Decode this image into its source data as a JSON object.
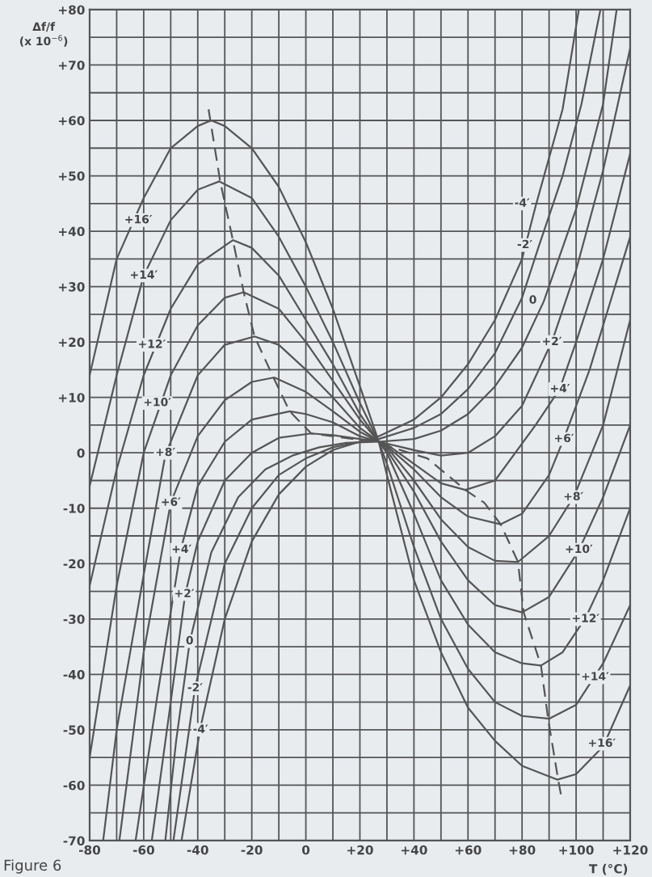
{
  "chart_data": {
    "type": "line",
    "xlabel": "T (°C)",
    "ylabel": "Δf/f\n(x 10$^{−6}$)",
    "xlim": [
      -80,
      120
    ],
    "xticks": [
      -80,
      {
        "value": -70,
        "label": null
      },
      -60,
      {
        "value": -50,
        "label": null
      },
      -40,
      {
        "value": -30,
        "label": null
      },
      -20,
      {
        "value": -10,
        "label": null
      },
      0,
      {
        "value": 10,
        "label": null
      },
      {
        "value": 20,
        "label": "+20"
      },
      {
        "value": 30,
        "label": null
      },
      {
        "value": 40,
        "label": "+40"
      },
      {
        "value": 50,
        "label": null
      },
      {
        "value": 60,
        "label": "+60"
      },
      {
        "value": 70,
        "label": null
      },
      {
        "value": 80,
        "label": "+80"
      },
      {
        "value": 90,
        "label": null
      },
      {
        "value": 100,
        "label": "+100"
      },
      {
        "value": 110,
        "label": null
      },
      {
        "value": 120,
        "label": "+120"
      }
    ],
    "ylim": [
      -70,
      80
    ],
    "yticks": [
      -70,
      {
        "value": -65,
        "label": null
      },
      -60,
      {
        "value": -55,
        "label": null
      },
      -50,
      {
        "value": -45,
        "label": null
      },
      -40,
      {
        "value": -35,
        "label": null
      },
      -30,
      {
        "value": -25,
        "label": null
      },
      -20,
      {
        "value": -15,
        "label": null
      },
      -10,
      {
        "value": -5,
        "label": null
      },
      0,
      {
        "value": 5,
        "label": null
      },
      {
        "value": 10,
        "label": "+10"
      },
      {
        "value": 15,
        "label": null
      },
      {
        "value": 20,
        "label": "+20"
      },
      {
        "value": 25,
        "label": null
      },
      {
        "value": 30,
        "label": "+30"
      },
      {
        "value": 35,
        "label": null
      },
      {
        "value": 40,
        "label": "+40"
      },
      {
        "value": 45,
        "label": null
      },
      {
        "value": 50,
        "label": "+50"
      },
      {
        "value": 55,
        "label": null
      },
      {
        "value": 60,
        "label": "+60"
      },
      {
        "value": 65,
        "label": null
      },
      {
        "value": 70,
        "label": "+70"
      },
      {
        "value": 75,
        "label": null
      },
      {
        "value": 80,
        "label": "+80"
      }
    ],
    "grid": true,
    "line_style": "solid",
    "marker": "none",
    "series": [
      {
        "color": "#555555",
        "x": [
          -80,
          -70,
          -60,
          -50,
          -40,
          -35,
          -30,
          -20,
          -10,
          0,
          10,
          20,
          27,
          30,
          40,
          50,
          60,
          70,
          80,
          93,
          100,
          110,
          120
        ],
        "values": [
          14,
          35,
          46,
          55,
          59,
          60,
          59,
          55,
          48,
          38,
          26,
          12,
          2,
          -4,
          -23,
          -36,
          -46,
          -52,
          -56.5,
          -59,
          -58,
          -53,
          -42
        ]
      },
      {
        "color": "#555555",
        "x": [
          -80,
          -70,
          -60,
          -50,
          -40,
          -32,
          -20,
          -10,
          0,
          10,
          20,
          27,
          30,
          40,
          50,
          60,
          70,
          80,
          90,
          100,
          110,
          120
        ],
        "values": [
          -6,
          14,
          32,
          42,
          47.5,
          49,
          46,
          39,
          30,
          20,
          9,
          2,
          -2,
          -17,
          -30,
          -39,
          -45,
          -47.5,
          -48,
          -45.5,
          -38,
          -27.5
        ]
      },
      {
        "color": "#555555",
        "x": [
          -80,
          -70,
          -60,
          -50,
          -40,
          -27,
          -20,
          -10,
          0,
          10,
          20,
          27,
          30,
          40,
          50,
          60,
          70,
          80,
          87,
          95,
          103.5,
          110,
          120
        ],
        "values": [
          -24,
          -3,
          14,
          26,
          34,
          38.4,
          37,
          32,
          24,
          16,
          7,
          2,
          0,
          -11,
          -23,
          -31,
          -36,
          -38,
          -38.4,
          -36,
          -29.8,
          -23,
          -10
        ]
      },
      {
        "color": "#555555",
        "x": [
          -80,
          -70,
          -60,
          -50,
          -40,
          -30,
          -23,
          -10,
          0,
          10,
          20,
          27,
          30,
          40,
          50,
          60,
          70,
          80,
          90,
          101,
          110,
          120
        ],
        "values": [
          -55,
          -24,
          0,
          14,
          23,
          28,
          29,
          26,
          20,
          13,
          6,
          2,
          0.5,
          -7,
          -16,
          -23,
          -27.5,
          -28.8,
          -26,
          -17.6,
          -8,
          5
        ]
      },
      {
        "color": "#555555",
        "x": [
          -75,
          -70,
          -60,
          -52,
          -40,
          -30,
          -19,
          -10,
          0,
          10,
          20,
          27,
          30,
          40,
          50,
          60,
          70,
          78.5,
          90,
          99.3,
          110,
          120
        ],
        "values": [
          -70,
          -50,
          -22,
          -0.4,
          14,
          19.5,
          21,
          19.5,
          15,
          10,
          4.5,
          2,
          1,
          -5,
          -12,
          -17,
          -19.5,
          -19.7,
          -15,
          -7.8,
          5,
          24
        ]
      },
      {
        "color": "#555555",
        "x": [
          -69,
          -60,
          -50,
          -40,
          -30,
          -20,
          -11.7,
          0,
          10,
          20,
          27,
          30,
          40,
          50,
          60,
          72,
          80,
          90,
          95.5,
          105,
          120
        ],
        "values": [
          -70,
          -36,
          -9,
          3,
          9.5,
          12.8,
          13.6,
          11,
          7.5,
          3.8,
          2,
          1.2,
          -3,
          -8,
          -11.5,
          -12.9,
          -11,
          -4,
          2.6,
          15,
          39
        ]
      },
      {
        "color": "#555555",
        "x": [
          -63,
          -55,
          -46.3,
          -40,
          -30,
          -20,
          -6,
          0,
          10,
          20,
          27,
          30,
          40,
          50,
          59,
          70,
          85,
          93.9,
          100,
          110,
          120
        ],
        "values": [
          -70,
          -44,
          -17.5,
          -6,
          2,
          6,
          7.5,
          7,
          5.5,
          3,
          2,
          1.5,
          -2,
          -5.5,
          -6.7,
          -5,
          5,
          11.5,
          20,
          35,
          54
        ]
      },
      {
        "color": "#555555",
        "x": [
          -57,
          -50,
          -44.7,
          -40,
          -30,
          -20,
          -10,
          2,
          10,
          20,
          27,
          40,
          50,
          60,
          70,
          80,
          91.3,
          100,
          110,
          120
        ],
        "values": [
          -70,
          -45,
          -25.7,
          -16,
          -5,
          0,
          2.7,
          3.5,
          3.2,
          2.5,
          2,
          0.5,
          -0.5,
          0,
          3,
          8.5,
          20.4,
          33,
          51,
          73
        ]
      },
      {
        "color": "#555555",
        "x": [
          -52,
          -48,
          -43,
          -35,
          -25,
          -15,
          -5,
          5,
          15,
          27,
          40,
          50,
          60,
          70,
          80,
          88,
          100,
          110,
          115
        ],
        "values": [
          -70,
          -52,
          -34.2,
          -18,
          -8,
          -3,
          -0.5,
          1,
          1.8,
          2,
          2.5,
          4,
          7,
          12,
          19,
          27.3,
          44,
          63,
          80
        ]
      },
      {
        "color": "#555555",
        "x": [
          -49,
          -41,
          -30,
          -20,
          -10,
          0,
          10,
          20,
          27,
          40,
          50,
          60,
          70,
          80,
          86,
          95,
          102,
          109
        ],
        "values": [
          -70,
          -42.4,
          -20,
          -10,
          -4,
          -1,
          1,
          2,
          2.5,
          4.5,
          7,
          11.5,
          18,
          28,
          37,
          50,
          63,
          80
        ]
      },
      {
        "color": "#555555",
        "x": [
          -46,
          -39,
          -30,
          -20,
          -10,
          0,
          10,
          20,
          27,
          40,
          50,
          60,
          70,
          80,
          85,
          95,
          101
        ],
        "values": [
          -70,
          -49.6,
          -30,
          -16,
          -7.5,
          -2.5,
          0.5,
          2,
          3,
          6,
          10,
          16,
          24,
          35,
          44.5,
          62,
          80
        ]
      },
      {
        "color": "#555555",
        "line_style": "dashed",
        "x": [
          -36,
          -31.7,
          -27,
          -23,
          -19,
          -12,
          -6,
          2,
          25,
          45,
          59,
          66,
          72.1,
          78.5,
          80.6,
          87,
          89.7,
          93.4,
          94.5
        ],
        "values": [
          62,
          49,
          38.4,
          29,
          21,
          13.6,
          7.5,
          3.5,
          2,
          -1,
          -6.7,
          -9,
          -12.9,
          -19.7,
          -28.8,
          -38.4,
          -48.2,
          -59.1,
          -62
        ]
      }
    ],
    "annotations": [
      {
        "text": "+16′",
        "x": -62,
        "y": 42
      },
      {
        "text": "+14′",
        "x": -60,
        "y": 32
      },
      {
        "text": "+12′",
        "x": -57,
        "y": 19.5
      },
      {
        "text": "+10′",
        "x": -55,
        "y": 9
      },
      {
        "text": "+8′",
        "x": -52,
        "y": 0
      },
      {
        "text": "+6′",
        "x": -50,
        "y": -9
      },
      {
        "text": "+4′",
        "x": -46,
        "y": -17.5
      },
      {
        "text": "+2′",
        "x": -45,
        "y": -25.5
      },
      {
        "text": "0",
        "x": -43,
        "y": -34
      },
      {
        "text": "-2′",
        "x": -41,
        "y": -42.5
      },
      {
        "text": "-4′",
        "x": -39,
        "y": -50
      },
      {
        "text": "-4′",
        "x": 80,
        "y": 45
      },
      {
        "text": "-2′",
        "x": 81,
        "y": 37.5
      },
      {
        "text": "0",
        "x": 84,
        "y": 27.5
      },
      {
        "text": "+2′",
        "x": 91,
        "y": 20
      },
      {
        "text": "+4′",
        "x": 94,
        "y": 11.5
      },
      {
        "text": "+6′",
        "x": 95.5,
        "y": 2.5
      },
      {
        "text": "+8′",
        "x": 99,
        "y": -8
      },
      {
        "text": "+10′",
        "x": 101,
        "y": -17.5
      },
      {
        "text": "+12′",
        "x": 103.5,
        "y": -30
      },
      {
        "text": "+14′",
        "x": 107,
        "y": -40.5
      },
      {
        "text": "+16′",
        "x": 109.5,
        "y": -52.5
      },
      "Figure 6"
    ]
  }
}
